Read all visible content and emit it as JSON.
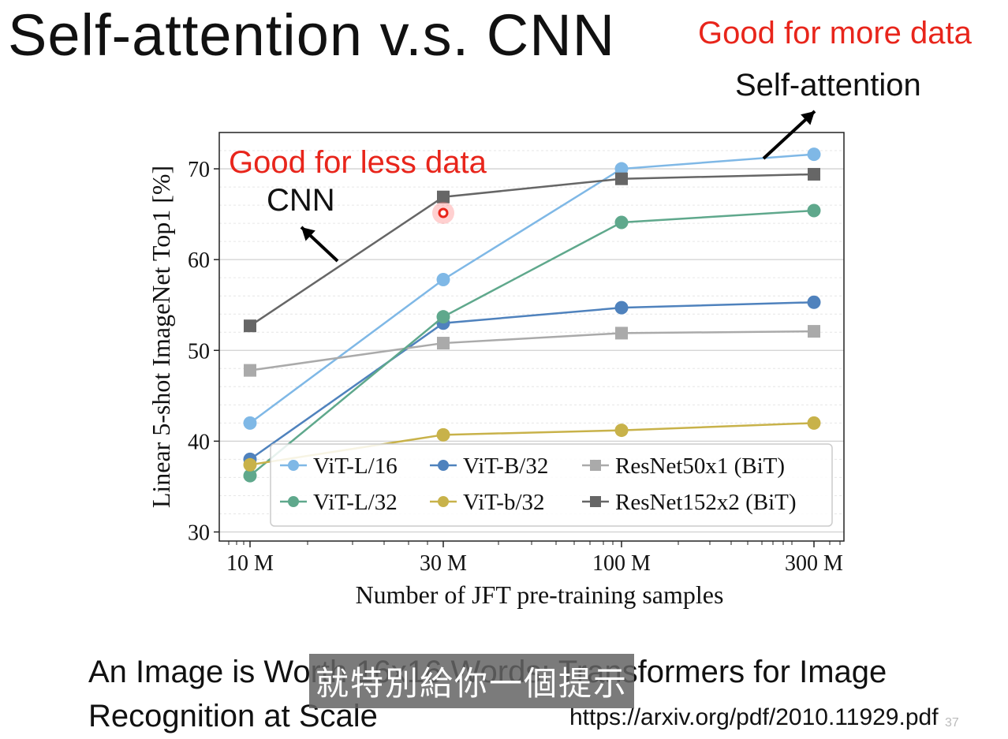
{
  "slide": {
    "title": "Self-attention v.s. CNN",
    "note_more_data": "Good for more data",
    "note_self_attention": "Self-attention",
    "note_less_data": "Good for less data",
    "note_cnn": "CNN",
    "paper_title": "An Image is Worth 16x16 Words: Transformers for Image Recognition at Scale",
    "url": "https://arxiv.org/pdf/2010.11929.pdf",
    "page_number": "37",
    "subtitle_overlay": "就特別給你一個提示"
  },
  "chart_data": {
    "type": "line",
    "xlabel": "Number of JFT pre-training samples",
    "ylabel": "Linear 5-shot ImageNet Top1 [%]",
    "x_tick_labels": [
      "10 M",
      "30 M",
      "100 M",
      "300 M"
    ],
    "x_scale": "log",
    "ylim": [
      29,
      74
    ],
    "y_ticks": [
      30,
      40,
      50,
      60,
      70
    ],
    "grid": true,
    "legend_position": "bottom-right",
    "legend_columns": 3,
    "series": [
      {
        "name": "ViT-L/16",
        "marker": "circle",
        "color": "#7fb8e6",
        "values": [
          42.0,
          57.8,
          70.0,
          71.6
        ]
      },
      {
        "name": "ViT-B/32",
        "marker": "circle",
        "color": "#4f82bd",
        "values": [
          38.0,
          53.0,
          54.7,
          55.3
        ]
      },
      {
        "name": "ResNet50x1 (BiT)",
        "marker": "square",
        "color": "#aaaaaa",
        "values": [
          47.8,
          50.8,
          51.9,
          52.1
        ]
      },
      {
        "name": "ViT-L/32",
        "marker": "circle",
        "color": "#5fa88c",
        "values": [
          36.2,
          53.7,
          64.1,
          65.4
        ]
      },
      {
        "name": "ViT-b/32",
        "marker": "circle",
        "color": "#c8b24a",
        "values": [
          37.4,
          40.7,
          41.2,
          42.0
        ]
      },
      {
        "name": "ResNet152x2 (BiT)",
        "marker": "square",
        "color": "#666666",
        "values": [
          52.7,
          66.9,
          68.9,
          69.4
        ]
      }
    ]
  }
}
